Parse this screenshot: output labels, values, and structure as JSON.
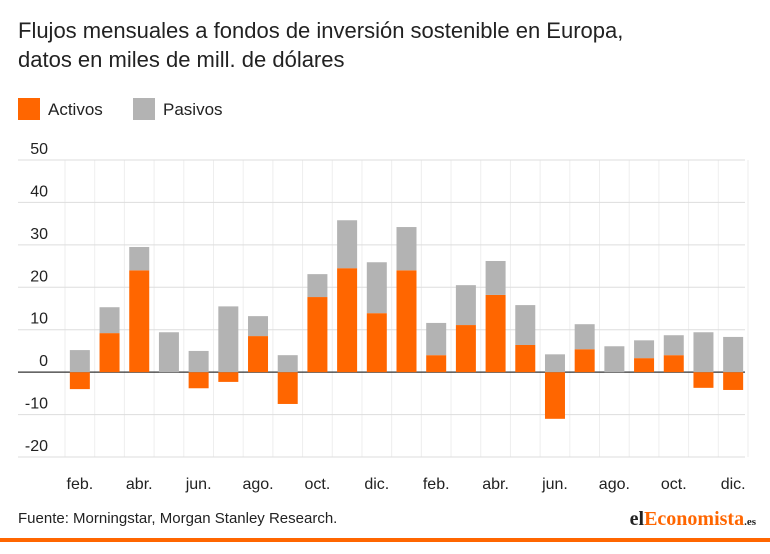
{
  "chart_data": {
    "type": "bar",
    "stacked": true,
    "title": "Flujos mensuales a fondos de inversión sostenible en Europa,",
    "subtitle": "datos en miles de mill. de dólares",
    "categories": [
      "feb.",
      null,
      "abr.",
      null,
      "jun.",
      null,
      "ago.",
      null,
      "oct.",
      null,
      "dic.",
      null,
      "feb.",
      null,
      "abr.",
      null,
      "jun.",
      null,
      "ago.",
      null,
      "oct.",
      null,
      "dic."
    ],
    "series": [
      {
        "name": "Activos",
        "color": "#ff6600",
        "values": [
          -4,
          9.2,
          24,
          0,
          -3.8,
          -2.3,
          8.5,
          -7.5,
          17.7,
          24.5,
          13.9,
          24,
          4,
          11.1,
          18.2,
          6.4,
          -11,
          5.4,
          0,
          3.3,
          4,
          -3.7,
          -4.2
        ]
      },
      {
        "name": "Pasivos",
        "color": "#b3b3b3",
        "values": [
          5.2,
          6.1,
          5.5,
          9.4,
          5,
          15.5,
          4.7,
          4,
          5.4,
          11.3,
          12,
          10.2,
          7.6,
          9.4,
          8,
          9.4,
          4.2,
          5.9,
          6.1,
          4.2,
          4.7,
          9.4,
          8.3
        ]
      }
    ],
    "ylim": [
      -20,
      50
    ],
    "yticks": [
      -20,
      -10,
      0,
      10,
      20,
      30,
      40,
      50
    ],
    "grid": true,
    "source": "Fuente: Morningstar, Morgan Stanley Research.",
    "logo": {
      "prefix": "el",
      "name": "Economista",
      "suffix": ".es"
    }
  }
}
